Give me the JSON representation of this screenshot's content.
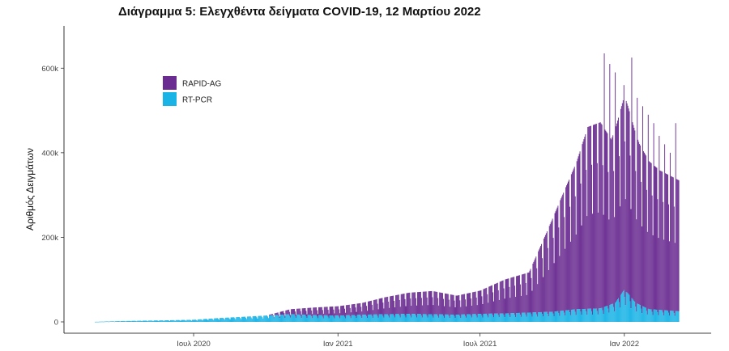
{
  "chart_data": {
    "type": "bar",
    "stacked": true,
    "title": "Διάγραμμα 5: Ελεγχθέντα δείγματα COVID-19, 12 Μαρτίου 2022",
    "xlabel": "",
    "ylabel": "Αριθμός Δειγμάτων",
    "ylim": [
      0,
      700000
    ],
    "yticks": [
      0,
      200000,
      400000,
      600000
    ],
    "ytick_labels": [
      "0",
      "200k",
      "400k",
      "600k"
    ],
    "xlim": [
      "2020-02-26",
      "2022-03-30"
    ],
    "xticks": [
      "2020-07-01",
      "2021-01-01",
      "2021-07-01",
      "2022-01-01"
    ],
    "xtick_labels": [
      "Ιουλ 2020",
      "Ιαν 2021",
      "Ιουλ 2021",
      "Ιαν 2022"
    ],
    "legend_position": "top-left",
    "grid": false,
    "daily_range": [
      "2020-02-26",
      "2022-03-11"
    ],
    "series": [
      {
        "name": "RAPID-AG",
        "color": "#6a2c91",
        "points": [
          [
            "2020-02-26",
            0
          ],
          [
            "2020-10-01",
            0
          ],
          [
            "2020-11-01",
            12000
          ],
          [
            "2020-12-01",
            18000
          ],
          [
            "2021-01-01",
            22000
          ],
          [
            "2021-02-01",
            28000
          ],
          [
            "2021-03-01",
            40000
          ],
          [
            "2021-04-01",
            50000
          ],
          [
            "2021-05-01",
            55000
          ],
          [
            "2021-06-01",
            45000
          ],
          [
            "2021-07-01",
            55000
          ],
          [
            "2021-08-01",
            80000
          ],
          [
            "2021-09-01",
            95000
          ],
          [
            "2021-09-12",
            140000
          ],
          [
            "2021-10-01",
            220000
          ],
          [
            "2021-11-01",
            350000
          ],
          [
            "2021-11-15",
            430000
          ],
          [
            "2021-12-01",
            440000
          ],
          [
            "2021-12-15",
            390000
          ],
          [
            "2022-01-01",
            460000
          ],
          [
            "2022-01-20",
            380000
          ],
          [
            "2022-02-01",
            350000
          ],
          [
            "2022-02-15",
            330000
          ],
          [
            "2022-03-11",
            310000
          ]
        ],
        "peaks": [
          [
            "2021-12-06",
            635000
          ],
          [
            "2021-12-13",
            610000
          ],
          [
            "2021-12-20",
            590000
          ],
          [
            "2021-12-31",
            560000
          ],
          [
            "2022-01-10",
            625000
          ],
          [
            "2022-01-17",
            530000
          ],
          [
            "2022-01-24",
            510000
          ],
          [
            "2022-01-31",
            490000
          ],
          [
            "2022-02-07",
            470000
          ],
          [
            "2022-02-14",
            440000
          ],
          [
            "2022-02-21",
            420000
          ],
          [
            "2022-02-28",
            400000
          ],
          [
            "2022-03-07",
            470000
          ]
        ]
      },
      {
        "name": "RT-PCR",
        "color": "#1ab3e6",
        "points": [
          [
            "2020-02-26",
            200
          ],
          [
            "2020-04-01",
            2000
          ],
          [
            "2020-05-01",
            3000
          ],
          [
            "2020-06-01",
            4000
          ],
          [
            "2020-07-01",
            5000
          ],
          [
            "2020-08-01",
            9000
          ],
          [
            "2020-09-01",
            12000
          ],
          [
            "2020-10-01",
            15000
          ],
          [
            "2020-11-01",
            18000
          ],
          [
            "2020-12-01",
            16000
          ],
          [
            "2021-01-01",
            15000
          ],
          [
            "2021-02-01",
            17000
          ],
          [
            "2021-03-01",
            18000
          ],
          [
            "2021-04-01",
            19000
          ],
          [
            "2021-05-01",
            18000
          ],
          [
            "2021-06-01",
            17000
          ],
          [
            "2021-07-01",
            19000
          ],
          [
            "2021-08-01",
            20000
          ],
          [
            "2021-09-01",
            22000
          ],
          [
            "2021-10-01",
            24000
          ],
          [
            "2021-11-01",
            30000
          ],
          [
            "2021-12-01",
            32000
          ],
          [
            "2021-12-20",
            45000
          ],
          [
            "2021-12-31",
            75000
          ],
          [
            "2022-01-05",
            68000
          ],
          [
            "2022-01-15",
            45000
          ],
          [
            "2022-02-01",
            30000
          ],
          [
            "2022-03-11",
            25000
          ]
        ]
      }
    ]
  }
}
